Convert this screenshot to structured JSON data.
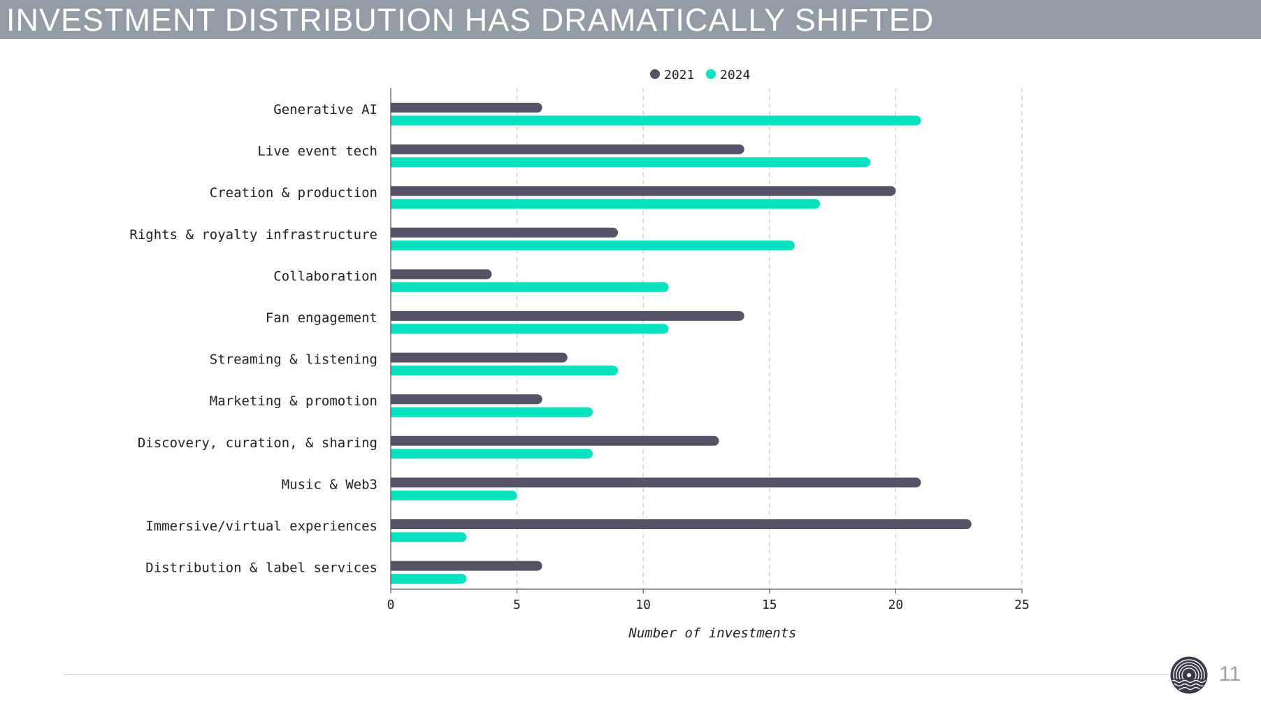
{
  "slide": {
    "title": "INVESTMENT DISTRIBUTION HAS DRAMATICALLY SHIFTED",
    "page_number": "11",
    "logo_icon": "vinyl-record-waves-icon"
  },
  "chart_data": {
    "type": "bar",
    "orientation": "horizontal",
    "categories": [
      "Generative AI",
      "Live event tech",
      "Creation & production",
      "Rights & royalty infrastructure",
      "Collaboration",
      "Fan engagement",
      "Streaming & listening",
      "Marketing & promotion",
      "Discovery, curation, & sharing",
      "Music & Web3",
      "Immersive/virtual experiences",
      "Distribution & label services"
    ],
    "series": [
      {
        "name": "2021",
        "color": "#555466",
        "values": [
          6,
          14,
          20,
          9,
          4,
          14,
          7,
          6,
          13,
          21,
          23,
          6
        ]
      },
      {
        "name": "2024",
        "color": "#06e1bf",
        "values": [
          21,
          19,
          17,
          16,
          11,
          11,
          9,
          8,
          8,
          5,
          3,
          3
        ]
      }
    ],
    "xlabel": "Number of investments",
    "xlim": [
      0,
      25
    ],
    "xticks": [
      "0",
      "5",
      "10",
      "15",
      "20",
      "25"
    ],
    "grid": "vertical-dashed",
    "legend_position": "top"
  }
}
